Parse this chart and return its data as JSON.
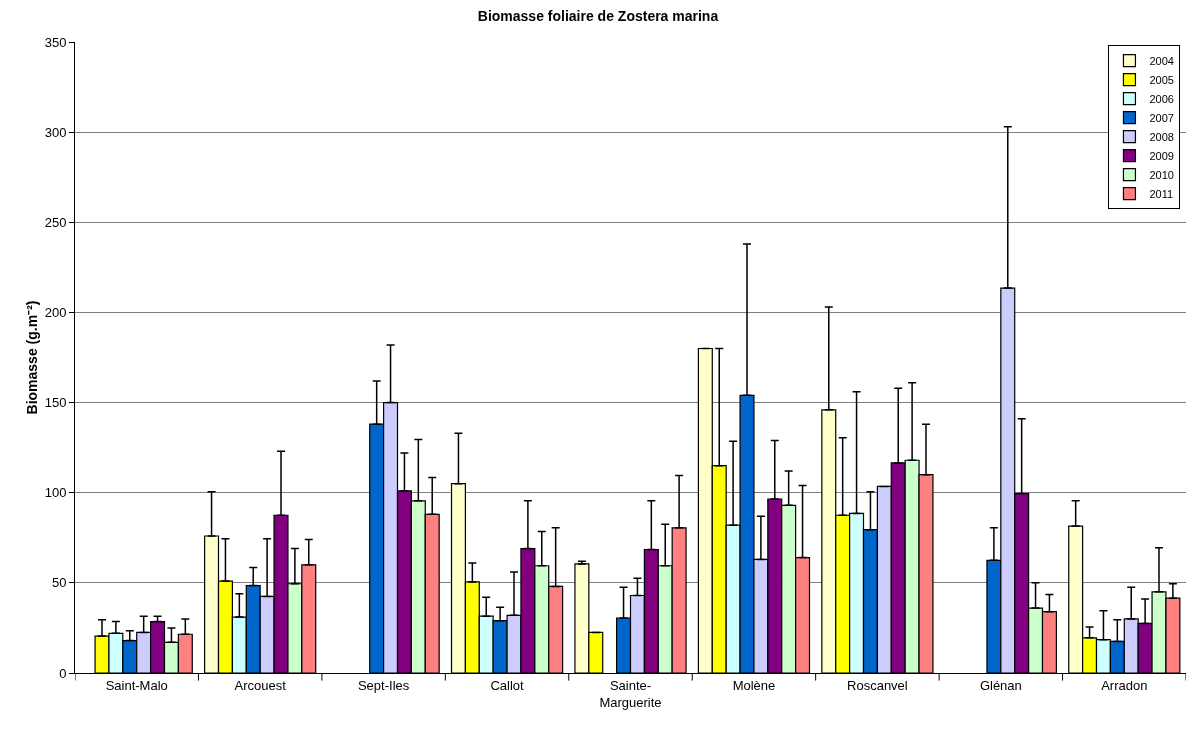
{
  "chart_data": {
    "type": "bar",
    "title": "Biomasse foliaire de Zostera marina",
    "ylabel": "Biomasse (g.m⁻²)",
    "categories": [
      "Saint-Malo",
      "Arcouest",
      "Sept-Iles",
      "Callot",
      "Sainte-Marguerite",
      "Molène",
      "Roscanvel",
      "Glénan",
      "Arradon"
    ],
    "series": [
      {
        "name": "2004",
        "color": "#ffffcc",
        "values": [
          null,
          76,
          null,
          105,
          60.5,
          180,
          146,
          null,
          81.5
        ],
        "errors": [
          null,
          [
            76,
            100.5
          ],
          null,
          [
            105,
            133
          ],
          [
            60.5,
            62
          ],
          null,
          [
            146,
            203
          ],
          null,
          [
            81.5,
            95.5
          ]
        ]
      },
      {
        "name": "2005",
        "color": "#ffff00",
        "values": [
          20.5,
          51,
          null,
          50.5,
          22.5,
          115,
          87.5,
          null,
          19.5
        ],
        "errors": [
          [
            20.5,
            29.5
          ],
          [
            51,
            74.5
          ],
          null,
          [
            50.5,
            61
          ],
          null,
          [
            115,
            180
          ],
          [
            87.5,
            130.5
          ],
          null,
          [
            19.5,
            25.5
          ]
        ]
      },
      {
        "name": "2006",
        "color": "#ccffff",
        "values": [
          22,
          31,
          null,
          31.5,
          null,
          82,
          88.5,
          null,
          18.5
        ],
        "errors": [
          [
            22,
            28.5
          ],
          [
            31,
            44
          ],
          null,
          [
            31.5,
            42
          ],
          null,
          [
            82,
            128.5
          ],
          [
            88.5,
            156
          ],
          null,
          [
            18.5,
            34.5
          ]
        ]
      },
      {
        "name": "2007",
        "color": "#0066cc",
        "values": [
          18,
          48.5,
          138,
          29,
          30.5,
          154,
          79.5,
          62.5,
          17.5
        ],
        "errors": [
          [
            18,
            23.5
          ],
          [
            48.5,
            58.5
          ],
          [
            138,
            162
          ],
          [
            29,
            36.5
          ],
          [
            30.5,
            47.5
          ],
          [
            154,
            238
          ],
          [
            79.5,
            100.5
          ],
          [
            62.5,
            80.5
          ],
          [
            17.5,
            29.5
          ]
        ]
      },
      {
        "name": "2008",
        "color": "#ccccff",
        "values": [
          22.5,
          42.5,
          150,
          32,
          43,
          63,
          103.5,
          213.5,
          30
        ],
        "errors": [
          [
            22.5,
            31.5
          ],
          [
            42.5,
            74.5
          ],
          [
            150,
            182
          ],
          [
            32,
            56
          ],
          [
            43,
            52.5
          ],
          [
            63,
            87
          ],
          null,
          [
            213.5,
            303
          ],
          [
            30,
            47.5
          ]
        ]
      },
      {
        "name": "2009",
        "color": "#800080",
        "values": [
          28.5,
          87.5,
          101,
          69,
          68.5,
          96.5,
          116.5,
          99.5,
          27.5
        ],
        "errors": [
          [
            28.5,
            31.5
          ],
          [
            87.5,
            123
          ],
          [
            101,
            122
          ],
          [
            69,
            95.5
          ],
          [
            68.5,
            95.5
          ],
          [
            96.5,
            129
          ],
          [
            116.5,
            158
          ],
          [
            99.5,
            141
          ],
          [
            27.5,
            41
          ]
        ]
      },
      {
        "name": "2010",
        "color": "#ccffcc",
        "values": [
          17,
          49.5,
          95.5,
          59.5,
          59.5,
          93,
          118,
          36,
          45
        ],
        "errors": [
          [
            17,
            25
          ],
          [
            49.5,
            69
          ],
          [
            95.5,
            129.5
          ],
          [
            59.5,
            78.5
          ],
          [
            59.5,
            82.5
          ],
          [
            93,
            112
          ],
          [
            118,
            161
          ],
          [
            36,
            50
          ],
          [
            45,
            69.5
          ]
        ]
      },
      {
        "name": "2011",
        "color": "#ff8080",
        "values": [
          21.5,
          60,
          88,
          48,
          80.5,
          64,
          110,
          34,
          41.5
        ],
        "errors": [
          [
            21.5,
            30
          ],
          [
            60,
            74
          ],
          [
            88,
            108.5
          ],
          [
            48,
            80.5
          ],
          [
            80.5,
            109.5
          ],
          [
            64,
            104
          ],
          [
            110,
            138
          ],
          [
            34,
            43.5
          ],
          [
            41.5,
            49.5
          ]
        ]
      }
    ],
    "ylim": [
      0,
      350
    ],
    "yticks": [
      0,
      50,
      100,
      150,
      200,
      250,
      300,
      350
    ],
    "grid": "y",
    "legend": "top right"
  }
}
